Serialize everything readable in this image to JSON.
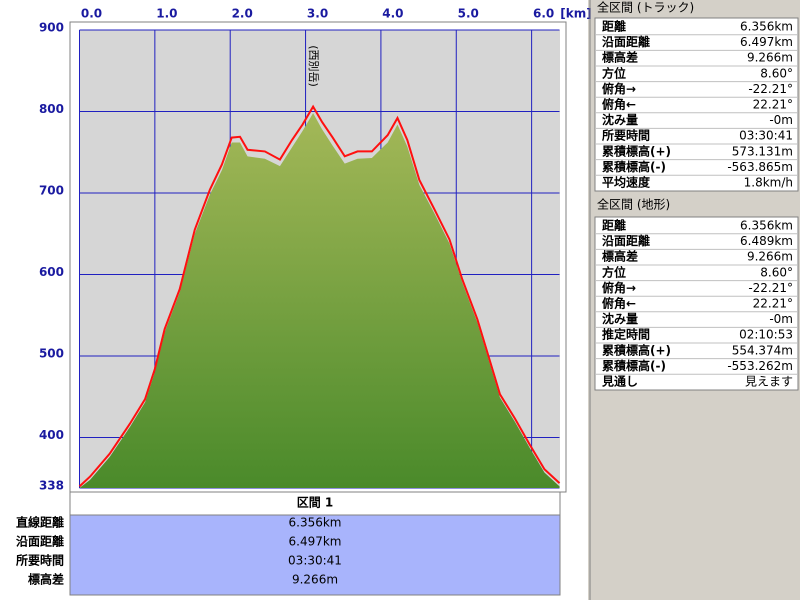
{
  "chart_data": {
    "type": "area",
    "x_label": "[km]",
    "annotation": "(西別岳)",
    "x": [
      0,
      0.14,
      0.4,
      0.67,
      0.87,
      1.0,
      1.13,
      1.33,
      1.53,
      1.73,
      1.89,
      2.02,
      2.13,
      2.23,
      2.46,
      2.66,
      2.82,
      2.96,
      3.1,
      3.22,
      3.36,
      3.52,
      3.69,
      3.88,
      4.09,
      4.22,
      4.35,
      4.51,
      4.71,
      4.91,
      5.08,
      5.28,
      5.44,
      5.58,
      5.78,
      5.97,
      6.17,
      6.37
    ],
    "series": [
      {
        "color": "#5e9a34",
        "values": [
          338,
          348,
          376,
          413,
          443,
          480,
          529,
          578,
          650,
          698,
          728,
          762,
          762,
          745,
          742,
          733,
          756,
          776,
          798,
          778,
          758,
          736,
          742,
          743,
          762,
          784,
          757,
          710,
          675,
          638,
          590,
          541,
          492,
          449,
          419,
          388,
          357,
          340
        ]
      },
      {
        "color": "#ff1010",
        "values": [
          340,
          352,
          380,
          417,
          447,
          484,
          533,
          582,
          655,
          704,
          735,
          768,
          769,
          753,
          751,
          741,
          765,
          784,
          806,
          787,
          768,
          745,
          751,
          751,
          771,
          792,
          765,
          716,
          680,
          643,
          594,
          545,
          496,
          453,
          423,
          392,
          361,
          344
        ]
      }
    ],
    "xlim": [
      0,
      6.37
    ],
    "xticks": [
      {
        "value": 0,
        "label": "0.0"
      },
      {
        "value": 1,
        "label": "1.0"
      },
      {
        "value": 2,
        "label": "2.0"
      },
      {
        "value": 3,
        "label": "3.0"
      },
      {
        "value": 4,
        "label": "4.0"
      },
      {
        "value": 5,
        "label": "5.0"
      },
      {
        "value": 6,
        "label": "6.0"
      }
    ],
    "ylim": [
      338,
      900
    ],
    "yticks": [
      338,
      400,
      500,
      600,
      700,
      800,
      900
    ],
    "grid": true
  },
  "section": {
    "title": "区間 1",
    "rows": [
      [
        "直線距離",
        "6.356km"
      ],
      [
        "沿面距離",
        "6.497km"
      ],
      [
        "所要時間",
        "03:30:41"
      ],
      [
        "標高差",
        "9.266m"
      ]
    ]
  },
  "track_panel": {
    "title": "全区間 (トラック)",
    "rows": [
      [
        "距離",
        "6.356km"
      ],
      [
        "沿面距離",
        "6.497km"
      ],
      [
        "標高差",
        "9.266m"
      ],
      [
        "方位",
        "8.60°"
      ],
      [
        "俯角→",
        "-22.21°"
      ],
      [
        "俯角←",
        "22.21°"
      ],
      [
        "沈み量",
        "-0m"
      ],
      [
        "所要時間",
        "03:30:41"
      ],
      [
        "累積標高(+)",
        "573.131m"
      ],
      [
        "累積標高(-)",
        "-563.865m"
      ],
      [
        "平均速度",
        "1.8km/h"
      ]
    ]
  },
  "terrain_panel": {
    "title": "全区間 (地形)",
    "rows": [
      [
        "距離",
        "6.356km"
      ],
      [
        "沿面距離",
        "6.489km"
      ],
      [
        "標高差",
        "9.266m"
      ],
      [
        "方位",
        "8.60°"
      ],
      [
        "俯角→",
        "-22.21°"
      ],
      [
        "俯角←",
        "22.21°"
      ],
      [
        "沈み量",
        "-0m"
      ],
      [
        "推定時間",
        "02:10:53"
      ],
      [
        "累積標高(+)",
        "554.374m"
      ],
      [
        "累積標高(-)",
        "-553.262m"
      ],
      [
        "見通し",
        "見えます"
      ]
    ]
  }
}
